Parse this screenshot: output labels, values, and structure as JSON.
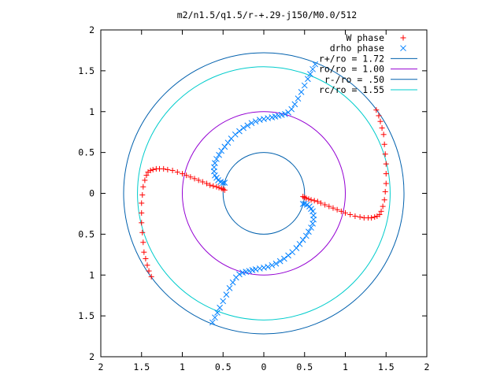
{
  "chart_data": {
    "type": "scatter",
    "title": "m2/n1.5/q1.5/r-+.29-j150/M0.0/512",
    "xlabel": "",
    "ylabel": "",
    "xlim": [
      -2,
      2
    ],
    "ylim": [
      -2,
      2
    ],
    "x_ticks": [
      -2,
      -1.5,
      -1,
      -0.5,
      0,
      0.5,
      1,
      1.5,
      2
    ],
    "y_ticks": [
      -2,
      -1.5,
      -1,
      -0.5,
      0,
      0.5,
      1,
      1.5,
      2
    ],
    "x_tick_labels": [
      "2",
      "1.5",
      "1",
      "0.5",
      "0",
      "0.5",
      "1",
      "1.5",
      "2"
    ],
    "y_tick_labels": [
      "2",
      "1.5",
      "1",
      "0.5",
      "0",
      "0.5",
      "1",
      "1.5",
      "2"
    ],
    "grid": false,
    "legend_position": "top-right",
    "series": [
      {
        "name": "W phase",
        "marker": "plus",
        "color": "#ff0000",
        "x": [
          1.38,
          1.41,
          1.43,
          1.45,
          1.47,
          1.48,
          1.49,
          1.5,
          1.5,
          1.5,
          1.49,
          1.48,
          1.46,
          1.44,
          1.42,
          1.39,
          1.36,
          1.32,
          1.28,
          1.23,
          1.18,
          1.12,
          1.06,
          1.0,
          0.95,
          0.9,
          0.85,
          0.8,
          0.75,
          0.7,
          0.66,
          0.62,
          0.58,
          0.55,
          0.52,
          0.5,
          0.48,
          -1.38,
          -1.41,
          -1.43,
          -1.45,
          -1.47,
          -1.48,
          -1.49,
          -1.5,
          -1.5,
          -1.5,
          -1.49,
          -1.48,
          -1.46,
          -1.44,
          -1.42,
          -1.39,
          -1.36,
          -1.32,
          -1.28,
          -1.23,
          -1.18,
          -1.12,
          -1.06,
          -1.0,
          -0.95,
          -0.9,
          -0.85,
          -0.8,
          -0.75,
          -0.7,
          -0.66,
          -0.62,
          -0.58,
          -0.55,
          -0.52,
          -0.5,
          -0.48
        ],
        "y": [
          1.02,
          0.95,
          0.88,
          0.8,
          0.72,
          0.6,
          0.48,
          0.36,
          0.24,
          0.12,
          0.02,
          -0.08,
          -0.16,
          -0.22,
          -0.26,
          -0.28,
          -0.29,
          -0.3,
          -0.3,
          -0.3,
          -0.29,
          -0.28,
          -0.26,
          -0.24,
          -0.22,
          -0.2,
          -0.18,
          -0.16,
          -0.14,
          -0.12,
          -0.1,
          -0.09,
          -0.08,
          -0.07,
          -0.06,
          -0.05,
          -0.04,
          -1.02,
          -0.95,
          -0.88,
          -0.8,
          -0.72,
          -0.6,
          -0.48,
          -0.36,
          -0.24,
          -0.12,
          -0.02,
          0.08,
          0.16,
          0.22,
          0.26,
          0.28,
          0.29,
          0.3,
          0.3,
          0.3,
          0.29,
          0.28,
          0.26,
          0.24,
          0.22,
          0.2,
          0.18,
          0.16,
          0.14,
          0.12,
          0.1,
          0.09,
          0.08,
          0.07,
          0.06,
          0.05,
          0.04
        ]
      },
      {
        "name": "drho phase",
        "marker": "cross",
        "color": "#0080ff",
        "x": [
          0.63,
          0.6,
          0.57,
          0.54,
          0.5,
          0.46,
          0.42,
          0.38,
          0.34,
          0.3,
          0.26,
          0.22,
          0.18,
          0.14,
          0.1,
          0.05,
          0.0,
          -0.05,
          -0.1,
          -0.15,
          -0.2,
          -0.25,
          -0.3,
          -0.35,
          -0.4,
          -0.44,
          -0.48,
          -0.52,
          -0.55,
          -0.58,
          -0.6,
          -0.61,
          -0.61,
          -0.6,
          -0.58,
          -0.56,
          -0.53,
          -0.5,
          -0.48,
          -0.63,
          -0.6,
          -0.57,
          -0.54,
          -0.5,
          -0.46,
          -0.42,
          -0.38,
          -0.34,
          -0.3,
          -0.26,
          -0.22,
          -0.18,
          -0.14,
          -0.1,
          -0.05,
          0.0,
          0.05,
          0.1,
          0.15,
          0.2,
          0.25,
          0.3,
          0.35,
          0.4,
          0.44,
          0.48,
          0.52,
          0.55,
          0.58,
          0.6,
          0.61,
          0.61,
          0.6,
          0.58,
          0.56,
          0.53,
          0.5,
          0.48
        ],
        "y": [
          1.58,
          1.52,
          1.46,
          1.4,
          1.32,
          1.24,
          1.16,
          1.09,
          1.03,
          0.99,
          0.97,
          0.96,
          0.95,
          0.94,
          0.93,
          0.92,
          0.91,
          0.9,
          0.88,
          0.86,
          0.83,
          0.8,
          0.76,
          0.72,
          0.67,
          0.62,
          0.57,
          0.52,
          0.47,
          0.42,
          0.37,
          0.32,
          0.27,
          0.22,
          0.19,
          0.16,
          0.14,
          0.13,
          0.13,
          -1.58,
          -1.52,
          -1.46,
          -1.4,
          -1.32,
          -1.24,
          -1.16,
          -1.09,
          -1.03,
          -0.99,
          -0.97,
          -0.96,
          -0.95,
          -0.94,
          -0.93,
          -0.92,
          -0.91,
          -0.9,
          -0.88,
          -0.86,
          -0.83,
          -0.8,
          -0.76,
          -0.72,
          -0.67,
          -0.62,
          -0.57,
          -0.52,
          -0.47,
          -0.42,
          -0.37,
          -0.32,
          -0.27,
          -0.22,
          -0.19,
          -0.16,
          -0.14,
          -0.13,
          -0.13
        ]
      },
      {
        "name": "r+/ro = 1.72",
        "type": "circle",
        "radius": 1.72,
        "color": "#0060ad"
      },
      {
        "name": "ro/ro = 1.00",
        "type": "circle",
        "radius": 1.0,
        "color": "#9400d3"
      },
      {
        "name": "r-/ro = .50",
        "type": "circle",
        "radius": 0.5,
        "color": "#0060ad"
      },
      {
        "name": "rc/ro = 1.55",
        "type": "circle",
        "radius": 1.55,
        "color": "#00cccc"
      }
    ]
  }
}
